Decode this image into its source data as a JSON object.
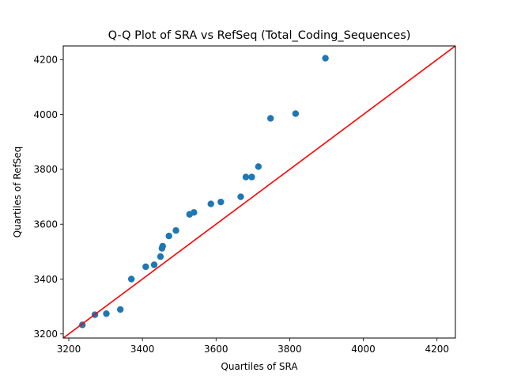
{
  "chart_data": {
    "type": "scatter",
    "title": "Q-Q Plot of SRA vs RefSeq (Total_Coding_Sequences)",
    "xlabel": "Quartiles of SRA",
    "ylabel": "Quartiles of RefSeq",
    "xlim": [
      3185,
      4250
    ],
    "ylim": [
      3185,
      4250
    ],
    "xticks": [
      3200,
      3400,
      3600,
      3800,
      4000,
      4200
    ],
    "yticks": [
      3200,
      3400,
      3600,
      3800,
      4000,
      4200
    ],
    "grid": false,
    "legend": "none",
    "points": {
      "color": "#1f77b4",
      "x": [
        3237,
        3271,
        3302,
        3340,
        3370,
        3409,
        3432,
        3449,
        3453,
        3455,
        3472,
        3491,
        3528,
        3540,
        3586,
        3613,
        3667,
        3681,
        3697,
        3715,
        3748,
        3816,
        3897
      ],
      "y": [
        3233,
        3270,
        3274,
        3289,
        3400,
        3445,
        3452,
        3482,
        3512,
        3520,
        3557,
        3577,
        3636,
        3643,
        3674,
        3681,
        3700,
        3772,
        3772,
        3810,
        3986,
        4003,
        4205
      ]
    },
    "reference_line": {
      "color": "#ff0000",
      "x": [
        3185,
        4250
      ],
      "y": [
        3185,
        4250
      ]
    }
  }
}
